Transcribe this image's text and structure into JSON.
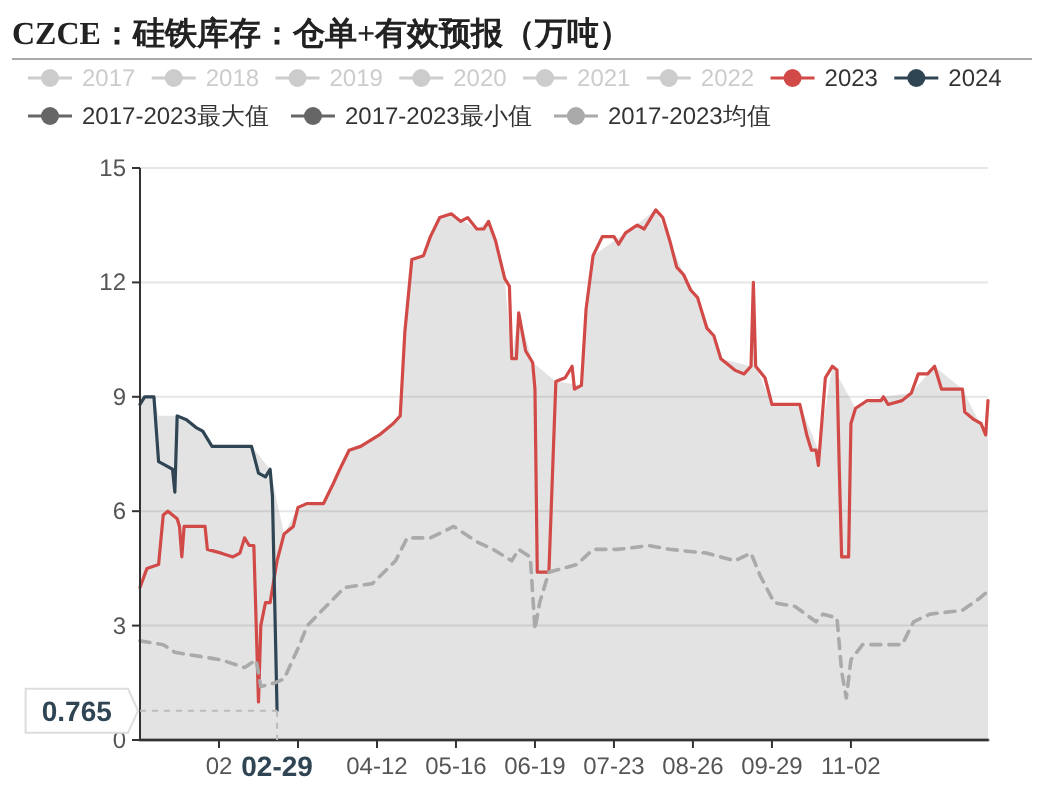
{
  "chart_data": {
    "type": "line",
    "title": "CZCE：硅铁库存：仓单+有效预报（万吨）",
    "xlim": [
      "--01-01",
      "--12-31"
    ],
    "xticks": [
      {
        "value": "--02-04",
        "label": "02"
      },
      {
        "value": "--03-09",
        "label": null
      },
      {
        "value": "--04-12",
        "label": "04-12"
      },
      {
        "value": "--05-16",
        "label": "05-16"
      },
      {
        "value": "--06-19",
        "label": "06-19"
      },
      {
        "value": "--07-23",
        "label": "07-23"
      },
      {
        "value": "--08-26",
        "label": "08-26"
      },
      {
        "value": "--09-29",
        "label": "09-29"
      },
      {
        "value": "--11-02",
        "label": "11-02"
      }
    ],
    "ylim": [
      0,
      15
    ],
    "yticks": [
      0,
      3,
      6,
      9,
      12,
      15
    ],
    "grid": "y",
    "legend": "top",
    "marker": "none",
    "annotations": [
      {
        "text": "02-29",
        "x": "--02-29",
        "y": 0.765
      },
      {
        "text": "0.765",
        "x": "--02-29",
        "y": 0.765
      }
    ],
    "series": [
      {
        "name": "2017",
        "color": "#cccccc"
      },
      {
        "name": "2018",
        "color": "#cccccc"
      },
      {
        "name": "2019",
        "color": "#cccccc"
      },
      {
        "name": "2020",
        "color": "#cccccc"
      },
      {
        "name": "2021",
        "color": "#cccccc"
      },
      {
        "name": "2022",
        "color": "#cccccc"
      },
      {
        "name": "2023",
        "color": "#d14a47",
        "x": [
          "--01-01",
          "--01-04",
          "--01-09",
          "--01-11",
          "--01-13",
          "--01-17",
          "--01-18",
          "--01-19",
          "--01-20",
          "--01-29",
          "--01-30",
          "--02-05",
          "--02-10",
          "--02-13",
          "--02-15",
          "--02-17",
          "--02-19",
          "--02-21",
          "--02-22",
          "--02-24",
          "--02-26",
          "--02-29",
          "--03-03",
          "--03-07",
          "--03-09",
          "--03-13",
          "--03-20",
          "--03-24",
          "--03-27",
          "--03-31",
          "--04-05",
          "--04-13",
          "--04-19",
          "--04-22",
          "--04-24",
          "--04-27",
          "--05-02",
          "--05-05",
          "--05-09",
          "--05-14",
          "--05-18",
          "--05-21",
          "--05-25",
          "--05-28",
          "--05-30",
          "--06-02",
          "--06-06",
          "--06-08",
          "--06-09",
          "--06-11",
          "--06-12",
          "--06-15",
          "--06-18",
          "--06-19",
          "--06-20",
          "--06-25",
          "--06-28",
          "--07-02",
          "--07-05",
          "--07-06",
          "--07-09",
          "--07-11",
          "--07-14",
          "--07-18",
          "--07-23",
          "--07-25",
          "--07-28",
          "--08-02",
          "--08-05",
          "--08-07",
          "--08-10",
          "--08-13",
          "--08-16",
          "--08-19",
          "--08-22",
          "--08-25",
          "--08-28",
          "--09-01",
          "--09-04",
          "--09-07",
          "--09-13",
          "--09-17",
          "--09-20",
          "--09-21",
          "--09-22",
          "--09-26",
          "--09-29",
          "--10-11",
          "--10-14",
          "--10-16",
          "--10-18",
          "--10-19",
          "--10-22",
          "--10-25",
          "--10-27",
          "--10-28",
          "--10-29",
          "--11-01",
          "--11-02",
          "--11-04",
          "--11-09",
          "--11-15",
          "--11-16",
          "--11-18",
          "--11-24",
          "--11-28",
          "--12-01",
          "--12-05",
          "--12-08",
          "--12-11",
          "--12-20",
          "--12-21",
          "--12-25",
          "--12-28",
          "--12-30",
          "--12-31"
        ],
        "values": [
          4.0,
          4.5,
          4.6,
          5.9,
          6.0,
          5.8,
          5.6,
          4.8,
          5.6,
          5.6,
          5.0,
          4.9,
          4.8,
          4.9,
          5.3,
          5.1,
          5.1,
          1.0,
          3.0,
          3.6,
          3.6,
          4.7,
          5.4,
          5.6,
          6.1,
          6.2,
          6.2,
          6.7,
          7.1,
          7.6,
          7.7,
          8.0,
          8.3,
          8.5,
          10.7,
          12.6,
          12.7,
          13.2,
          13.7,
          13.8,
          13.6,
          13.7,
          13.4,
          13.4,
          13.6,
          13.1,
          12.1,
          11.9,
          10.0,
          10.0,
          11.2,
          10.2,
          9.9,
          9.2,
          4.4,
          4.4,
          9.4,
          9.5,
          9.8,
          9.2,
          9.3,
          11.3,
          12.7,
          13.2,
          13.2,
          13.0,
          13.3,
          13.5,
          13.4,
          13.6,
          13.9,
          13.7,
          13.1,
          12.4,
          12.2,
          11.8,
          11.6,
          10.8,
          10.6,
          10.0,
          9.7,
          9.6,
          9.8,
          12.0,
          9.8,
          9.5,
          8.8,
          8.8,
          8.0,
          7.6,
          7.6,
          7.2,
          9.5,
          9.8,
          9.7,
          7.1,
          4.8,
          4.8,
          8.3,
          8.7,
          8.9,
          8.9,
          9.0,
          8.8,
          8.9,
          9.1,
          9.6,
          9.6,
          9.8,
          9.2,
          9.2,
          8.6,
          8.4,
          8.3,
          8.0,
          8.9
        ]
      },
      {
        "name": "2024",
        "color": "#2f4554",
        "x": [
          "--01-01",
          "--01-03",
          "--01-07",
          "--01-09",
          "--01-12",
          "--01-15",
          "--01-16",
          "--01-17",
          "--01-21",
          "--01-25",
          "--01-28",
          "--02-01",
          "--02-18",
          "--02-21",
          "--02-24",
          "--02-26",
          "--02-27",
          "--02-29"
        ],
        "values": [
          8.8,
          9.0,
          9.0,
          7.3,
          7.2,
          7.1,
          6.5,
          8.5,
          8.4,
          8.2,
          8.1,
          7.7,
          7.7,
          7.0,
          6.9,
          7.1,
          6.4,
          0.765
        ]
      },
      {
        "name": "2017-2023最大值",
        "type": "area",
        "color": "#666666",
        "x": [
          "--01-01",
          "--01-07",
          "--01-09",
          "--01-17",
          "--01-28",
          "--02-01",
          "--02-18",
          "--02-26",
          "--03-03",
          "--03-09",
          "--03-20",
          "--03-31",
          "--04-13",
          "--04-22",
          "--04-24",
          "--04-27",
          "--05-02",
          "--05-09",
          "--05-14",
          "--05-25",
          "--05-30",
          "--06-06",
          "--06-09",
          "--06-12",
          "--06-18",
          "--06-28",
          "--07-09",
          "--07-11",
          "--07-14",
          "--07-28",
          "--08-10",
          "--08-16",
          "--08-22",
          "--08-28",
          "--09-07",
          "--09-20",
          "--09-21",
          "--09-22",
          "--09-29",
          "--10-11",
          "--10-19",
          "--10-25",
          "--11-04",
          "--11-16",
          "--11-28",
          "--12-08",
          "--12-20",
          "--12-30",
          "--12-31"
        ],
        "values": [
          9.0,
          9.0,
          8.5,
          8.5,
          8.1,
          7.7,
          7.7,
          7.1,
          5.4,
          6.1,
          6.2,
          7.6,
          8.0,
          8.5,
          10.7,
          12.6,
          12.7,
          13.7,
          13.8,
          13.4,
          13.6,
          12.1,
          10.0,
          11.2,
          9.9,
          9.4,
          9.3,
          11.3,
          12.7,
          13.3,
          13.9,
          13.1,
          12.2,
          11.6,
          10.0,
          9.8,
          12.0,
          9.8,
          8.8,
          8.8,
          7.6,
          9.8,
          8.7,
          9.0,
          9.1,
          9.8,
          9.2,
          8.0,
          8.9
        ]
      },
      {
        "name": "2017-2023最小值",
        "color": "#666666",
        "x": [
          "--01-01",
          "--12-31"
        ],
        "values": [
          0,
          0
        ]
      },
      {
        "name": "2017-2023均值",
        "color": "#aaaaaa",
        "line_style": "dashed",
        "x": [
          "--01-01",
          "--01-11",
          "--01-16",
          "--01-26",
          "--02-05",
          "--02-15",
          "--02-20",
          "--02-22",
          "--02-28",
          "--03-03",
          "--03-09",
          "--03-13",
          "--03-21",
          "--03-29",
          "--04-10",
          "--04-20",
          "--04-25",
          "--05-05",
          "--05-15",
          "--05-25",
          "--06-01",
          "--06-09",
          "--06-12",
          "--06-17",
          "--06-19",
          "--06-21",
          "--06-25",
          "--07-07",
          "--07-14",
          "--07-25",
          "--08-07",
          "--08-16",
          "--09-01",
          "--09-13",
          "--09-20",
          "--09-24",
          "--09-30",
          "--10-09",
          "--10-18",
          "--10-21",
          "--10-27",
          "--10-29",
          "--10-31",
          "--11-02",
          "--11-07",
          "--11-24",
          "--11-29",
          "--12-06",
          "--12-20",
          "--12-27",
          "--12-31"
        ],
        "values": [
          2.6,
          2.5,
          2.3,
          2.2,
          2.1,
          1.9,
          2.1,
          1.4,
          1.5,
          1.6,
          2.4,
          3.0,
          3.5,
          4.0,
          4.1,
          4.7,
          5.3,
          5.3,
          5.6,
          5.2,
          5.0,
          4.7,
          5.0,
          4.8,
          2.9,
          3.6,
          4.4,
          4.6,
          5.0,
          5.0,
          5.1,
          5.0,
          4.9,
          4.7,
          4.9,
          4.3,
          3.6,
          3.5,
          3.1,
          3.3,
          3.2,
          1.8,
          1.1,
          2.1,
          2.5,
          2.5,
          3.1,
          3.3,
          3.4,
          3.7,
          3.9
        ]
      }
    ]
  }
}
